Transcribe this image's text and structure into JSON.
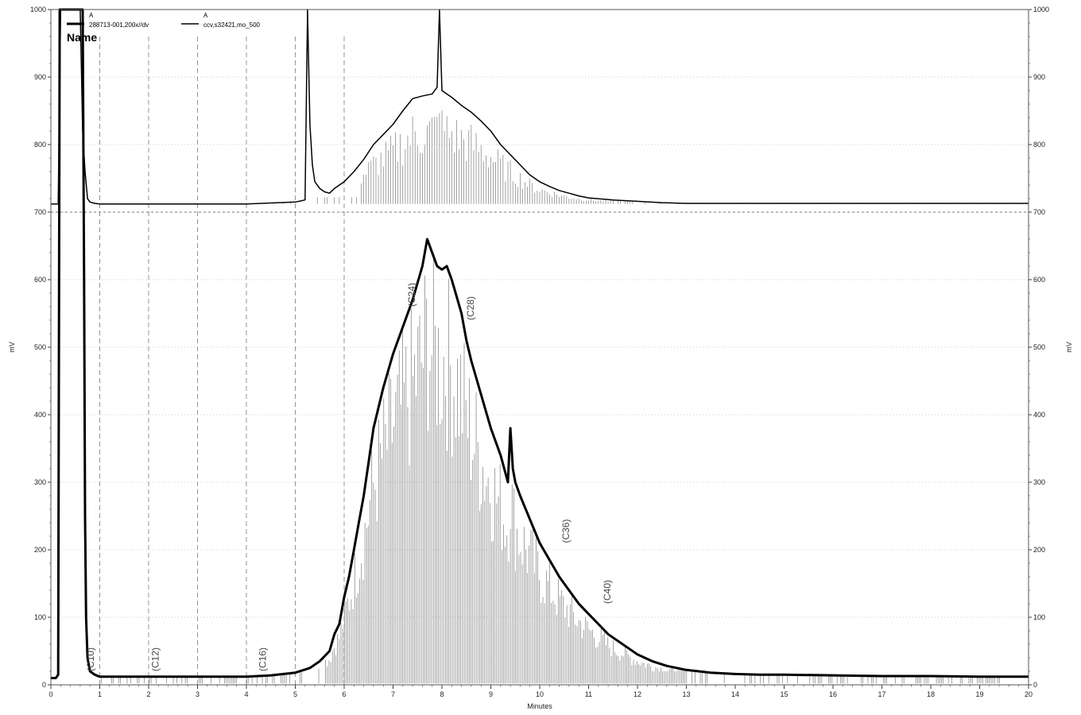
{
  "chart_data": {
    "type": "line",
    "title": "",
    "xlabel": "Minutes",
    "ylabel_left": "mV",
    "ylabel_right": "mV",
    "xlim": [
      0,
      20
    ],
    "ylim": [
      0,
      1000
    ],
    "x_ticks": [
      0,
      1,
      2,
      3,
      4,
      5,
      6,
      7,
      8,
      9,
      10,
      11,
      12,
      13,
      14,
      15,
      16,
      17,
      18,
      19,
      20
    ],
    "x_tick_labels": [
      "0",
      "1",
      "2",
      "3",
      "4",
      "5",
      "6",
      "7",
      "8",
      "9",
      "10",
      "11",
      "12",
      "13",
      "14",
      "15",
      "16",
      "17",
      "18",
      "19",
      "20"
    ],
    "y_ticks": [
      0,
      100,
      200,
      300,
      400,
      500,
      600,
      700,
      800,
      900,
      1000
    ],
    "y_tick_labels": [
      "0",
      "100",
      "200",
      "300",
      "400",
      "500",
      "600",
      "700",
      "800",
      "900",
      "1000"
    ],
    "grid": true,
    "vertical_markers": [
      1,
      2,
      3,
      4,
      5,
      6
    ],
    "baseline_divider": 700,
    "legend": {
      "title": "Name",
      "position": "top-left",
      "entries": [
        {
          "channel": "A",
          "label": "288713-001,200x//dv",
          "color": "#000000",
          "width": 3
        },
        {
          "channel": "A",
          "label": "ccv,s32421,mo_500",
          "color": "#000000",
          "width": 1.5
        }
      ]
    },
    "annotations": [
      "(C10)",
      "(C12)",
      "(C16)",
      "(C24)",
      "(C28)",
      "(C36)",
      "(C40)"
    ],
    "series": [
      {
        "name": "288713-001,200x//dv",
        "color": "#000000",
        "x": [
          0,
          0.1,
          0.15,
          0.18,
          0.22,
          0.6,
          0.65,
          0.68,
          0.7,
          0.72,
          0.75,
          0.8,
          0.9,
          1.0,
          1.5,
          2,
          3,
          4,
          4.5,
          5,
          5.3,
          5.5,
          5.7,
          5.8,
          5.9,
          6.0,
          6.1,
          6.2,
          6.3,
          6.4,
          6.5,
          6.6,
          6.8,
          7.0,
          7.2,
          7.4,
          7.6,
          7.7,
          7.8,
          7.9,
          8.0,
          8.1,
          8.2,
          8.3,
          8.4,
          8.5,
          8.6,
          8.8,
          9.0,
          9.2,
          9.35,
          9.4,
          9.45,
          9.5,
          9.6,
          9.8,
          10.0,
          10.2,
          10.4,
          10.6,
          10.8,
          11.0,
          11.2,
          11.4,
          11.6,
          11.8,
          12.0,
          12.3,
          12.6,
          13,
          13.5,
          14,
          14.5,
          15,
          16,
          17,
          18,
          19,
          20
        ],
        "y": [
          10,
          10,
          15,
          1000,
          1000,
          1000,
          1000,
          600,
          250,
          100,
          40,
          20,
          15,
          12,
          12,
          12,
          12,
          12,
          14,
          18,
          25,
          35,
          50,
          75,
          90,
          130,
          160,
          200,
          240,
          280,
          330,
          380,
          440,
          490,
          530,
          570,
          620,
          660,
          640,
          620,
          615,
          620,
          600,
          575,
          550,
          510,
          480,
          430,
          380,
          340,
          300,
          380,
          320,
          300,
          280,
          245,
          210,
          185,
          160,
          140,
          120,
          105,
          90,
          75,
          65,
          55,
          45,
          35,
          28,
          22,
          18,
          16,
          15,
          15,
          14,
          13,
          13,
          12,
          12
        ]
      },
      {
        "name": "ccv,s32421,mo_500",
        "color": "#000000",
        "x": [
          0,
          0.15,
          0.2,
          0.55,
          0.6,
          0.65,
          0.7,
          0.75,
          0.8,
          0.9,
          1.0,
          2,
          3,
          4,
          5,
          5.2,
          5.25,
          5.3,
          5.35,
          5.4,
          5.5,
          5.6,
          5.7,
          5.8,
          6.0,
          6.2,
          6.4,
          6.6,
          6.8,
          7.0,
          7.2,
          7.4,
          7.6,
          7.8,
          7.9,
          7.95,
          8.0,
          8.1,
          8.2,
          8.4,
          8.6,
          8.8,
          9.0,
          9.2,
          9.4,
          9.6,
          9.8,
          10.0,
          10.2,
          10.4,
          10.6,
          10.8,
          11.0,
          11.5,
          12,
          12.5,
          13,
          14,
          15,
          16,
          17,
          18,
          19,
          20
        ],
        "y": [
          712,
          712,
          1000,
          1000,
          1000,
          820,
          760,
          720,
          715,
          713,
          712,
          712,
          712,
          712,
          715,
          718,
          1000,
          830,
          770,
          745,
          735,
          730,
          728,
          735,
          745,
          760,
          778,
          800,
          815,
          830,
          850,
          868,
          872,
          875,
          885,
          1000,
          880,
          875,
          870,
          858,
          848,
          835,
          820,
          800,
          785,
          770,
          755,
          745,
          738,
          732,
          728,
          724,
          721,
          718,
          716,
          714,
          713,
          713,
          713,
          713,
          713,
          713,
          713,
          713
        ]
      }
    ]
  }
}
